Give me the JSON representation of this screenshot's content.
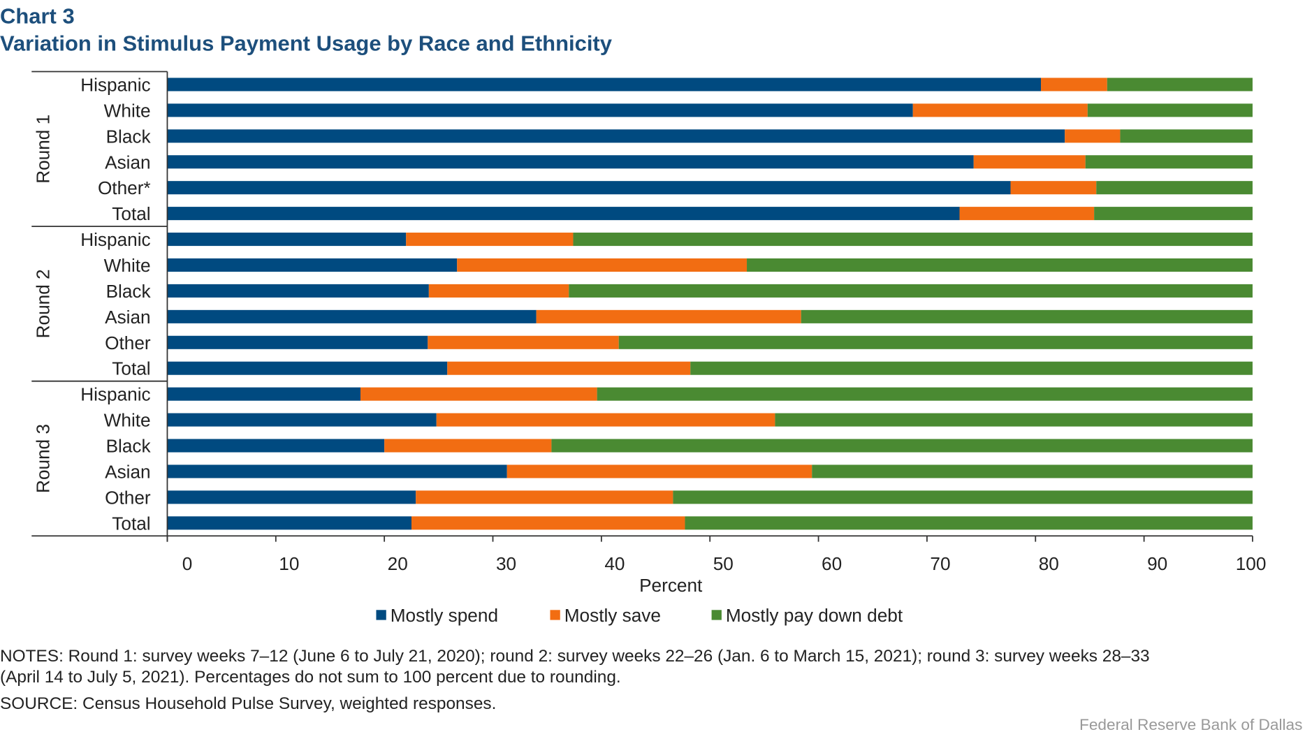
{
  "chart_data": {
    "type": "bar",
    "orientation": "horizontal",
    "stacked": true,
    "title": "Chart 3",
    "subtitle": "Variation in Stimulus Payment Usage by Race and Ethnicity",
    "xlabel": "Percent",
    "xlim": [
      0,
      100
    ],
    "xticks": [
      "0",
      "10",
      "20",
      "30",
      "40",
      "50",
      "60",
      "70",
      "80",
      "90",
      "100"
    ],
    "grid": false,
    "legend_placement": "bottom",
    "series": [
      {
        "name": "Mostly spend",
        "color": "#004a80"
      },
      {
        "name": "Mostly save",
        "color": "#f26d12"
      },
      {
        "name": "Mostly pay down debt",
        "color": "#4a8a32"
      }
    ],
    "groups": [
      {
        "label": "Round 1",
        "rows": [
          {
            "category": "Hispanic",
            "values": [
              80.5,
              6.1,
              13.4
            ]
          },
          {
            "category": "White",
            "values": [
              68.7,
              16.1,
              15.2
            ]
          },
          {
            "category": "Black",
            "values": [
              82.7,
              5.1,
              12.2
            ]
          },
          {
            "category": "Asian",
            "values": [
              74.3,
              10.3,
              15.4
            ]
          },
          {
            "category": "Other*",
            "values": [
              77.7,
              7.9,
              14.4
            ]
          },
          {
            "category": "Total",
            "values": [
              73.0,
              12.4,
              14.6
            ]
          }
        ]
      },
      {
        "label": "Round 2",
        "rows": [
          {
            "category": "Hispanic",
            "values": [
              22.0,
              15.4,
              62.6
            ]
          },
          {
            "category": "White",
            "values": [
              26.7,
              26.7,
              46.6
            ]
          },
          {
            "category": "Black",
            "values": [
              24.1,
              12.9,
              63.0
            ]
          },
          {
            "category": "Asian",
            "values": [
              34.0,
              24.4,
              41.6
            ]
          },
          {
            "category": "Other",
            "values": [
              24.0,
              17.6,
              58.4
            ]
          },
          {
            "category": "Total",
            "values": [
              25.8,
              22.4,
              51.8
            ]
          }
        ]
      },
      {
        "label": "Round 3",
        "rows": [
          {
            "category": "Hispanic",
            "values": [
              17.8,
              21.8,
              60.4
            ]
          },
          {
            "category": "White",
            "values": [
              24.8,
              31.2,
              44.0
            ]
          },
          {
            "category": "Black",
            "values": [
              20.0,
              15.4,
              64.6
            ]
          },
          {
            "category": "Asian",
            "values": [
              31.3,
              28.1,
              40.6
            ]
          },
          {
            "category": "Other",
            "values": [
              22.9,
              23.7,
              53.4
            ]
          },
          {
            "category": "Total",
            "values": [
              22.5,
              25.2,
              52.3
            ]
          }
        ]
      }
    ]
  },
  "notes": [
    "NOTES: Round 1: survey weeks 7–12 (June 6 to July 21, 2020); round 2: survey weeks 22–26 (Jan. 6 to March 15, 2021); round 3: survey weeks 28–33",
    "(April 14 to July 5, 2021). Percentages do not sum to 100 percent due to rounding."
  ],
  "source": "SOURCE: Census Household Pulse Survey, weighted responses.",
  "credit": "Federal Reserve Bank of Dallas"
}
